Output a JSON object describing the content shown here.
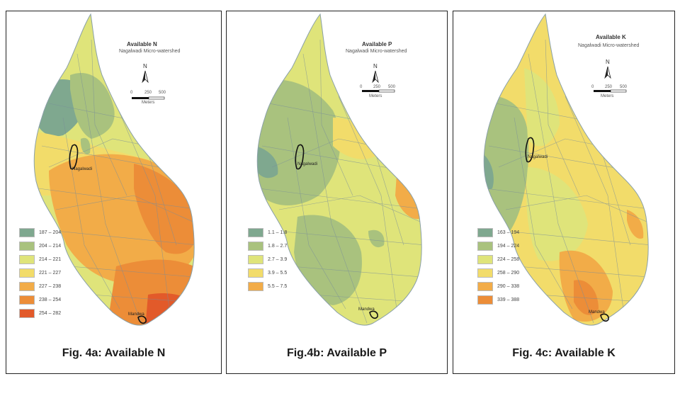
{
  "palette": {
    "c1": "#7fa88f",
    "c2": "#a9c27e",
    "c3": "#dfe47a",
    "c4": "#f2dc6a",
    "c5": "#f2ac48",
    "c6": "#ec8d38",
    "c7": "#e25a2a",
    "road": "#7a8e9a"
  },
  "common": {
    "north_label": "N",
    "scale_0": "0",
    "scale_250": "250",
    "scale_500": "500",
    "scale_unit": "Meters",
    "village_top": "Nagalwadi",
    "village_bottom": "Mandwa"
  },
  "maps": [
    {
      "id": "a",
      "title": "Available N",
      "subtitle": "Nagalwadi Micro-watershed",
      "caption": "Fig. 4a: Available N",
      "legend": [
        {
          "label": "187 – 204",
          "color": "#7fa88f"
        },
        {
          "label": "204 – 214",
          "color": "#a9c27e"
        },
        {
          "label": "214 – 221",
          "color": "#dfe47a"
        },
        {
          "label": "221 – 227",
          "color": "#f2dc6a"
        },
        {
          "label": "227 – 238",
          "color": "#f2ac48"
        },
        {
          "label": "238 – 254",
          "color": "#ec8d38"
        },
        {
          "label": "254 – 282",
          "color": "#e25a2a"
        }
      ]
    },
    {
      "id": "b",
      "title": "Available P",
      "subtitle": "Nagalwadi Micro-watershed",
      "caption": "Fig.4b: Available P",
      "legend": [
        {
          "label": "1.1 – 1.8",
          "color": "#7fa88f"
        },
        {
          "label": "1.8 – 2.7",
          "color": "#a9c27e"
        },
        {
          "label": "2.7 – 3.9",
          "color": "#dfe47a"
        },
        {
          "label": "3.9 – 5.5",
          "color": "#f2dc6a"
        },
        {
          "label": "5.5 – 7.5",
          "color": "#f2ac48"
        }
      ]
    },
    {
      "id": "c",
      "title": "Available K",
      "subtitle": "Nagalwadi Micro-watershed",
      "caption": "Fig. 4c: Available K",
      "legend": [
        {
          "label": "163 – 194",
          "color": "#7fa88f"
        },
        {
          "label": "194 – 224",
          "color": "#a9c27e"
        },
        {
          "label": "224 – 258",
          "color": "#dfe47a"
        },
        {
          "label": "258 – 290",
          "color": "#f2dc6a"
        },
        {
          "label": "290 – 338",
          "color": "#f2ac48"
        },
        {
          "label": "339 – 388",
          "color": "#ec8d38"
        }
      ]
    }
  ]
}
